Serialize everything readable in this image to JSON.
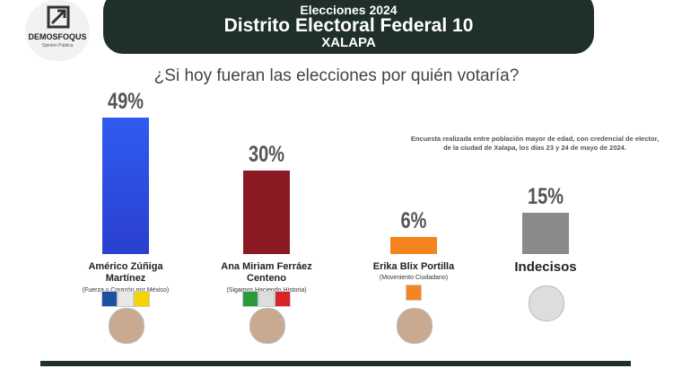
{
  "logo": {
    "name": "DEMOSFOQUS",
    "tagline": "Opinión Pública"
  },
  "header": {
    "kicker": "Elecciones 2024",
    "title": "Distrito Electoral Federal 10",
    "subtitle": "XALAPA"
  },
  "chart_data": {
    "type": "bar",
    "title": "¿Si hoy fueran las elecciones por quién votaría?",
    "note": "Encuesta realizada entre población mayor de edad, con credencial de elector, de la ciudad de Xalapa, los días 23 y 24 de mayo de 2024.",
    "categories": [
      "Américo Zúñiga Martínez",
      "Ana Miriam Ferráez Centeno",
      "Erika Blix Portilla",
      "Indecisos"
    ],
    "coalitions": [
      "(Fuerza y Corazón por México)",
      "(Sigamos Haciendo Historia)",
      "(Movimiento Ciudadano)",
      null
    ],
    "values": [
      49,
      30,
      6,
      15
    ],
    "value_labels": [
      "49%",
      "30%",
      "6%",
      "15%"
    ],
    "colors": [
      "#2b4fe0",
      "#8b1a24",
      "#f5841f",
      "#8a8a8a"
    ]
  }
}
